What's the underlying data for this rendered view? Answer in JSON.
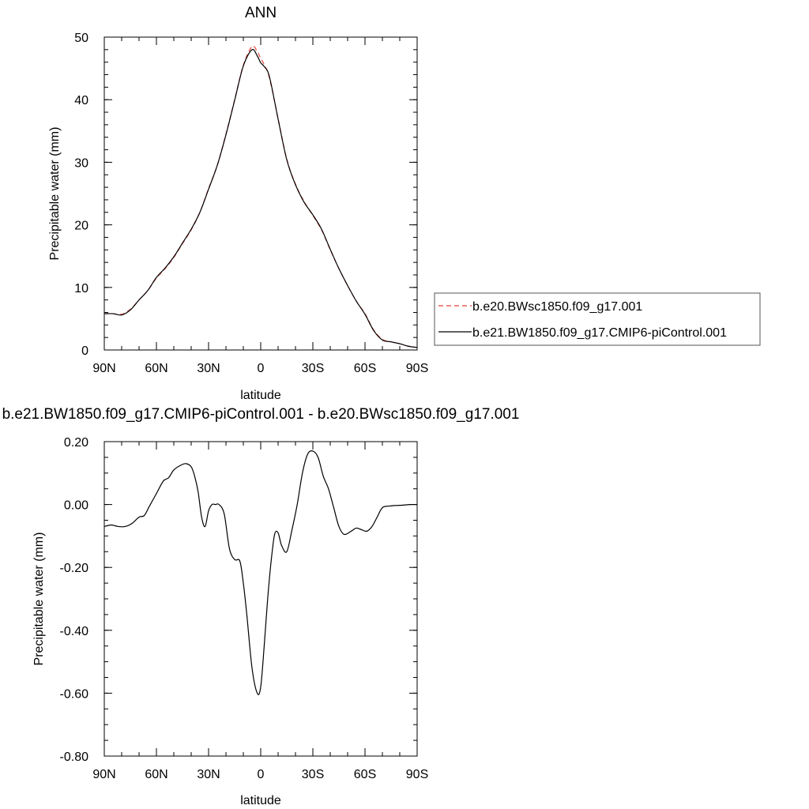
{
  "colors": {
    "dashed_series": "#e8403a",
    "solid_series": "#000000",
    "axes": "#000000"
  },
  "chart_data": [
    {
      "type": "line",
      "title": "ANN",
      "xlabel": "latitude",
      "ylabel": "Precipitable water (mm)",
      "xlim": [
        90,
        -90
      ],
      "ylim": [
        0,
        50
      ],
      "grid": false,
      "xticks": [
        90,
        60,
        30,
        0,
        -30,
        -60,
        -90
      ],
      "xtick_labels": [
        "90N",
        "60N",
        "30N",
        "0",
        "30S",
        "60S",
        "90S"
      ],
      "yticks": [
        0,
        10,
        20,
        30,
        40,
        50
      ],
      "ytick_labels": [
        "0",
        "10",
        "20",
        "30",
        "40",
        "50"
      ],
      "legend_position": "right",
      "series": [
        {
          "name": "b.e20.BWsc1850.f09_g17.001",
          "style": "dashed",
          "color": "#e8403a",
          "x": [
            90,
            85,
            80,
            75,
            70,
            65,
            60,
            55,
            50,
            45,
            40,
            35,
            30,
            25,
            20,
            15,
            10,
            5,
            2,
            0,
            -2,
            -5,
            -10,
            -15,
            -20,
            -25,
            -30,
            -35,
            -40,
            -45,
            -50,
            -55,
            -60,
            -65,
            -70,
            -75,
            -80,
            -85,
            -90
          ],
          "y": [
            5.8,
            5.8,
            5.7,
            6.5,
            8.0,
            9.5,
            11.5,
            13.0,
            14.8,
            17.0,
            19.2,
            22.0,
            25.8,
            29.5,
            34.5,
            40.0,
            45.5,
            48.5,
            47.7,
            46.6,
            45.6,
            43.5,
            37.0,
            30.5,
            26.5,
            23.7,
            21.5,
            19.2,
            16.0,
            13.0,
            10.3,
            7.8,
            5.8,
            3.2,
            1.7,
            1.3,
            1.0,
            0.6,
            0.4
          ]
        },
        {
          "name": "b.e21.BW1850.f09_g17.CMIP6-piControl.001",
          "style": "solid",
          "color": "#000000",
          "x": [
            90,
            85,
            80,
            75,
            70,
            65,
            60,
            55,
            50,
            45,
            40,
            35,
            30,
            25,
            20,
            15,
            10,
            5,
            2,
            0,
            -2,
            -5,
            -10,
            -15,
            -20,
            -25,
            -30,
            -35,
            -40,
            -45,
            -50,
            -55,
            -60,
            -65,
            -70,
            -75,
            -80,
            -85,
            -90
          ],
          "y": [
            5.8,
            5.8,
            5.6,
            6.4,
            8.0,
            9.5,
            11.6,
            13.1,
            14.9,
            17.1,
            19.3,
            22.0,
            25.7,
            29.5,
            34.4,
            39.9,
            45.4,
            48.0,
            47.0,
            45.9,
            45.3,
            43.7,
            36.9,
            30.4,
            26.4,
            23.6,
            21.6,
            19.3,
            16.1,
            13.0,
            10.3,
            7.8,
            5.7,
            3.1,
            1.6,
            1.3,
            1.0,
            0.6,
            0.4
          ]
        }
      ]
    },
    {
      "type": "line",
      "title": "b.e21.BW1850.f09_g17.CMIP6-piControl.001 - b.e20.BWsc1850.f09_g17.001",
      "xlabel": "latitude",
      "ylabel": "Precipitable water (mm)",
      "xlim": [
        90,
        -90
      ],
      "ylim": [
        -0.8,
        0.2
      ],
      "grid": false,
      "xticks": [
        90,
        60,
        30,
        0,
        -30,
        -60,
        -90
      ],
      "xtick_labels": [
        "90N",
        "60N",
        "30N",
        "0",
        "30S",
        "60S",
        "90S"
      ],
      "yticks": [
        0.2,
        0.0,
        -0.2,
        -0.4,
        -0.6,
        -0.8
      ],
      "ytick_labels": [
        "0.20",
        "0.00",
        "-0.20",
        "-0.40",
        "-0.60",
        "-0.80"
      ],
      "series": [
        {
          "style": "solid",
          "color": "#000000",
          "x": [
            90,
            86,
            82,
            78,
            74,
            70,
            67,
            64,
            60,
            56,
            53,
            50,
            46,
            43,
            40,
            38,
            36,
            34,
            32,
            30,
            28,
            26,
            24,
            21,
            18,
            15,
            12,
            10,
            8,
            5,
            2,
            0,
            -2,
            -4,
            -6,
            -8,
            -10,
            -12,
            -15,
            -18,
            -21,
            -24,
            -27,
            -30,
            -33,
            -36,
            -39,
            -42,
            -45,
            -48,
            -52,
            -55,
            -58,
            -61,
            -64,
            -67,
            -70,
            -74,
            -78,
            -82,
            -86,
            -90
          ],
          "y": [
            -0.07,
            -0.065,
            -0.07,
            -0.07,
            -0.06,
            -0.04,
            -0.035,
            -0.005,
            0.035,
            0.075,
            0.085,
            0.11,
            0.125,
            0.13,
            0.12,
            0.09,
            0.04,
            -0.04,
            -0.07,
            -0.02,
            0.0,
            0.0,
            0.0,
            -0.03,
            -0.14,
            -0.175,
            -0.18,
            -0.25,
            -0.35,
            -0.52,
            -0.6,
            -0.58,
            -0.45,
            -0.3,
            -0.18,
            -0.095,
            -0.09,
            -0.13,
            -0.15,
            -0.08,
            0.0,
            0.1,
            0.16,
            0.17,
            0.15,
            0.09,
            0.05,
            -0.01,
            -0.07,
            -0.095,
            -0.085,
            -0.075,
            -0.08,
            -0.085,
            -0.07,
            -0.04,
            -0.01,
            -0.005,
            -0.003,
            -0.002,
            0.0,
            0.0
          ]
        }
      ]
    }
  ]
}
